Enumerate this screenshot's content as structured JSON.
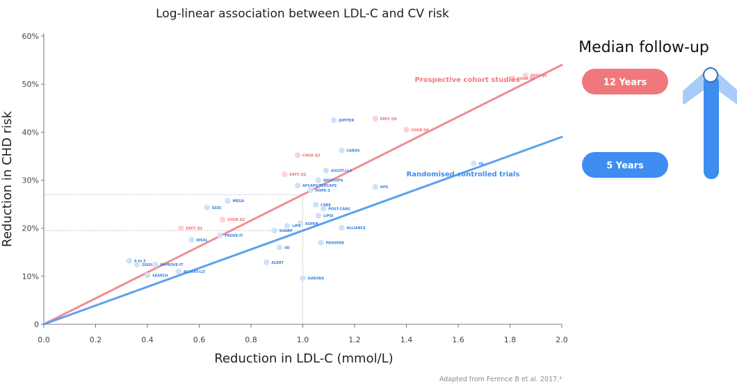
{
  "chart_data": {
    "type": "scatter",
    "title": "Log-linear association between LDL-C and CV risk",
    "xlabel": "Reduction in LDL-C (mmol/L)",
    "ylabel": "Reduction in CHD risk",
    "xlim": [
      0,
      2.0
    ],
    "ylim": [
      0,
      60
    ],
    "x_ticks": [
      "0.0",
      "0.2",
      "0.4",
      "0.6",
      "0.8",
      "1.0",
      "1.2",
      "1.4",
      "1.6",
      "1.8",
      "2.0"
    ],
    "y_ticks": [
      {
        "value": 0,
        "label": "0"
      },
      {
        "value": 10,
        "label": "10%"
      },
      {
        "value": 20,
        "label": "20%"
      },
      {
        "value": 30,
        "label": "30%"
      },
      {
        "value": 40,
        "label": "40%"
      },
      {
        "value": 50,
        "label": "50%"
      },
      {
        "value": 60,
        "label": "60%"
      }
    ],
    "series": [
      {
        "name": "Prospective cohort studies",
        "color": "#f08d92",
        "line_end": {
          "x": 2.0,
          "y": 54
        },
        "points": [
          {
            "label": "ERFC Q5",
            "x": 1.86,
            "y": 51.8
          },
          {
            "label": "CHGR Q5",
            "x": 1.81,
            "y": 51.2
          },
          {
            "label": "ERFC Q4",
            "x": 1.28,
            "y": 42.8
          },
          {
            "label": "CHGR Q4",
            "x": 1.4,
            "y": 40.5
          },
          {
            "label": "CHGR Q3",
            "x": 0.98,
            "y": 35.2
          },
          {
            "label": "ERFC Q2",
            "x": 0.93,
            "y": 31.2
          },
          {
            "label": "CHGR Q2",
            "x": 0.69,
            "y": 21.8
          },
          {
            "label": "ERFC Q2",
            "x": 0.53,
            "y": 20.0
          }
        ]
      },
      {
        "name": "Randomised controlled trials",
        "color": "#5ba0ee",
        "line_end": {
          "x": 2.0,
          "y": 39
        },
        "points": [
          {
            "label": "4S",
            "x": 1.66,
            "y": 33.5
          },
          {
            "label": "JUPITER",
            "x": 1.12,
            "y": 42.5
          },
          {
            "label": "CARDS",
            "x": 1.15,
            "y": 36.2
          },
          {
            "label": "ASCOT-LLA",
            "x": 1.09,
            "y": 32.0
          },
          {
            "label": "WOSCOPS",
            "x": 1.06,
            "y": 30.0
          },
          {
            "label": "AFCAPS/TEXCAPS",
            "x": 0.98,
            "y": 28.9
          },
          {
            "label": "HOPE-3",
            "x": 1.03,
            "y": 27.9
          },
          {
            "label": "HPS",
            "x": 1.28,
            "y": 28.6
          },
          {
            "label": "CARE",
            "x": 1.05,
            "y": 24.9
          },
          {
            "label": "POST-CABG",
            "x": 1.08,
            "y": 24.1
          },
          {
            "label": "LIPID",
            "x": 1.06,
            "y": 22.6
          },
          {
            "label": "ASPEN",
            "x": 0.99,
            "y": 21.0
          },
          {
            "label": "LIPS",
            "x": 0.94,
            "y": 20.5
          },
          {
            "label": "ALLIANCE",
            "x": 1.15,
            "y": 20.1
          },
          {
            "label": "SHARP",
            "x": 0.89,
            "y": 19.5
          },
          {
            "label": "PROVE-IT",
            "x": 0.68,
            "y": 18.5
          },
          {
            "label": "IDEAL",
            "x": 0.57,
            "y": 17.6
          },
          {
            "label": "PROSPER",
            "x": 1.07,
            "y": 17.0
          },
          {
            "label": "4D",
            "x": 0.91,
            "y": 16.0
          },
          {
            "label": "ALERT",
            "x": 0.86,
            "y": 12.9
          },
          {
            "label": "MEGA",
            "x": 0.71,
            "y": 25.7
          },
          {
            "label": "SSSS",
            "x": 0.63,
            "y": 24.3
          },
          {
            "label": "A to Z",
            "x": 0.33,
            "y": 13.2
          },
          {
            "label": "GISSI-P",
            "x": 0.36,
            "y": 12.4
          },
          {
            "label": "IMPROVE-IT",
            "x": 0.43,
            "y": 12.4
          },
          {
            "label": "ALLHAT-LLT",
            "x": 0.52,
            "y": 11.0
          },
          {
            "label": "SEARCH",
            "x": 0.4,
            "y": 10.2
          },
          {
            "label": "AURORA",
            "x": 1.0,
            "y": 9.6
          }
        ]
      }
    ],
    "annotations": {
      "median_follow_up_title": "Median follow-up",
      "long_label": "12 Years",
      "short_label": "5 Years",
      "long_color": "#f0787c",
      "short_color": "#3d8ef0"
    },
    "source": "Adapted from Ference B et al. 2017.³"
  }
}
